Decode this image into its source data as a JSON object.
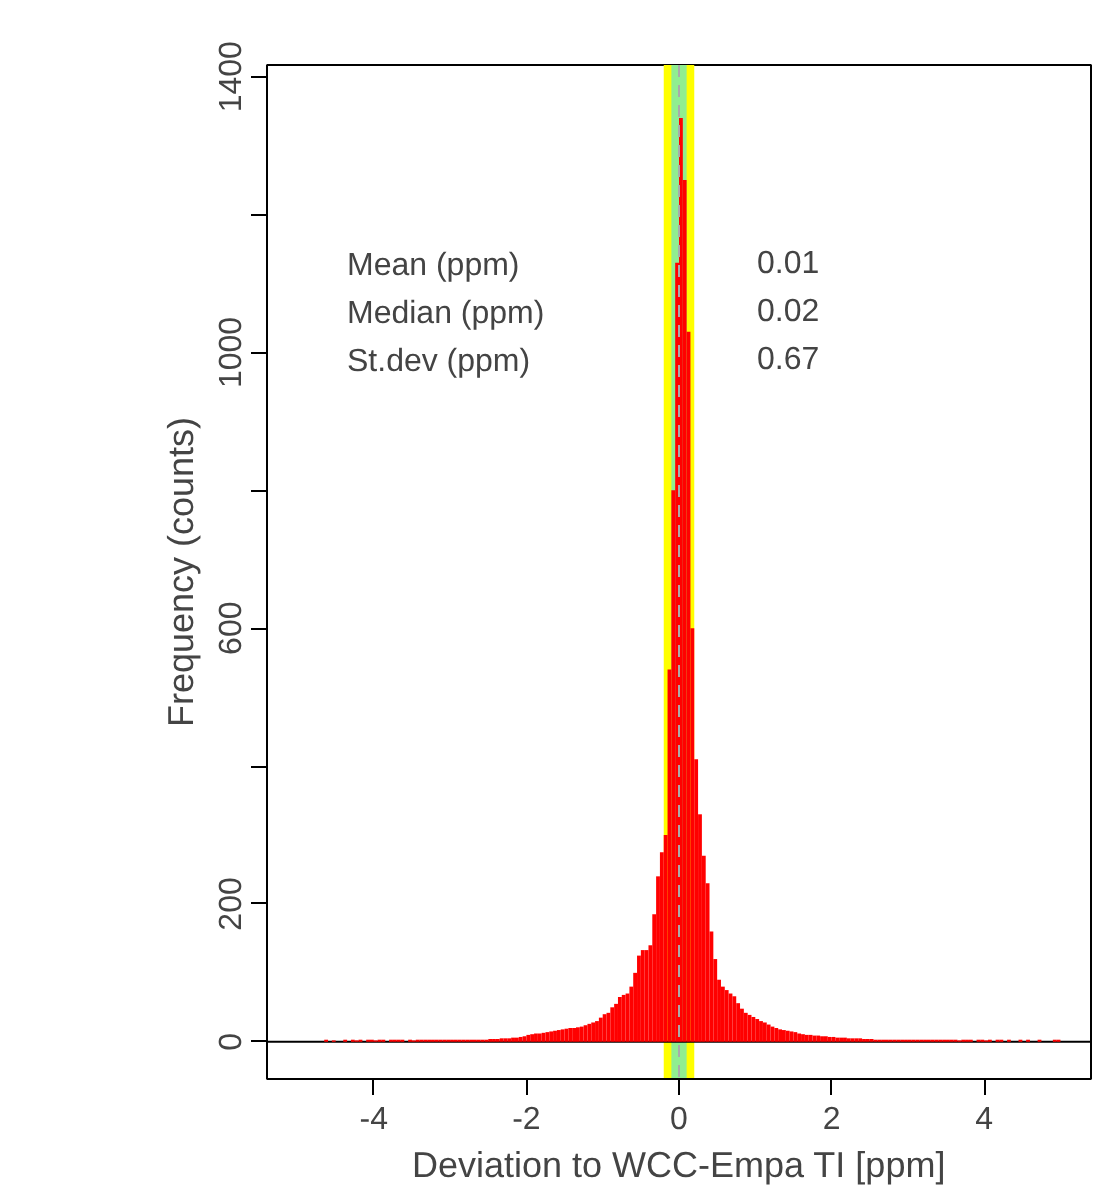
{
  "chart_data": {
    "type": "histogram",
    "xlabel": "Deviation to WCC-Empa TI [ppm]",
    "ylabel": "Frequency (counts)",
    "color": "#ff0000",
    "bins": [
      -4.65,
      -4.6,
      -4.55,
      -4.5,
      -4.45,
      -4.4,
      -4.35,
      -4.3,
      -4.25,
      -4.2,
      -4.15,
      -4.1,
      -4.05,
      -4,
      -3.95,
      -3.9,
      -3.85,
      -3.8,
      -3.75,
      -3.7,
      -3.65,
      -3.6,
      -3.55,
      -3.5,
      -3.45,
      -3.4,
      -3.35,
      -3.3,
      -3.25,
      -3.2,
      -3.15,
      -3.1,
      -3.05,
      -3,
      -2.95,
      -2.9,
      -2.85,
      -2.8,
      -2.75,
      -2.7,
      -2.65,
      -2.6,
      -2.55,
      -2.5,
      -2.45,
      -2.4,
      -2.35,
      -2.3,
      -2.25,
      -2.2,
      -2.15,
      -2.1,
      -2.05,
      -2,
      -1.95,
      -1.9,
      -1.85,
      -1.8,
      -1.75,
      -1.7,
      -1.65,
      -1.6,
      -1.55,
      -1.5,
      -1.45,
      -1.4,
      -1.35,
      -1.3,
      -1.25,
      -1.2,
      -1.15,
      -1.1,
      -1.05,
      -1,
      -0.95,
      -0.9,
      -0.85,
      -0.8,
      -0.75,
      -0.7,
      -0.65,
      -0.6,
      -0.55,
      -0.5,
      -0.45,
      -0.4,
      -0.35,
      -0.3,
      -0.25,
      -0.2,
      -0.15,
      -0.1,
      -0.05,
      0,
      0.05,
      0.1,
      0.15,
      0.2,
      0.25,
      0.3,
      0.35,
      0.4,
      0.45,
      0.5,
      0.55,
      0.6,
      0.65,
      0.7,
      0.75,
      0.8,
      0.85,
      0.9,
      0.95,
      1,
      1.05,
      1.1,
      1.15,
      1.2,
      1.25,
      1.3,
      1.35,
      1.4,
      1.45,
      1.5,
      1.55,
      1.6,
      1.65,
      1.7,
      1.75,
      1.8,
      1.85,
      1.9,
      1.95,
      2,
      2.05,
      2.1,
      2.15,
      2.2,
      2.25,
      2.3,
      2.35,
      2.4,
      2.45,
      2.5,
      2.55,
      2.6,
      2.65,
      2.7,
      2.75,
      2.8,
      2.85,
      2.9,
      2.95,
      3,
      3.05,
      3.1,
      3.15,
      3.2,
      3.25,
      3.3,
      3.35,
      3.4,
      3.45,
      3.5,
      3.55,
      3.6,
      3.65,
      3.7,
      3.75,
      3.8,
      3.85,
      3.9,
      3.95,
      4,
      4.05,
      4.1,
      4.15,
      4.2,
      4.25,
      4.3,
      4.35,
      4.4,
      4.45,
      4.5,
      4.55,
      4.6,
      4.65,
      4.7,
      4.75,
      4.8,
      4.85,
      4.9,
      4.95,
      5
    ],
    "values": [
      3,
      null,
      2,
      null,
      null,
      3,
      null,
      3,
      2,
      3,
      null,
      3,
      3,
      2,
      3,
      3,
      null,
      3,
      3,
      3,
      3,
      null,
      3,
      2,
      3,
      3,
      3,
      3,
      3,
      3,
      3,
      3,
      3,
      3,
      3,
      3,
      3,
      3,
      3,
      3,
      3,
      3,
      3,
      4,
      4,
      4,
      5,
      5,
      5,
      6,
      6,
      7,
      8,
      10,
      11,
      12,
      12,
      13,
      14,
      15,
      16,
      17,
      18,
      19,
      20,
      20,
      21,
      22,
      24,
      26,
      28,
      30,
      35,
      40,
      42,
      50,
      55,
      65,
      68,
      70,
      80,
      100,
      125,
      133,
      133,
      140,
      185,
      240,
      275,
      300,
      540,
      800,
      1130,
      1340,
      1250,
      1030,
      600,
      410,
      330,
      270,
      230,
      160,
      120,
      90,
      80,
      75,
      70,
      66,
      56,
      48,
      42,
      39,
      36,
      33,
      30,
      28,
      25,
      22,
      20,
      18,
      17,
      16,
      15,
      14,
      12,
      11,
      10,
      10,
      9,
      9,
      8,
      8,
      7,
      7,
      6,
      6,
      6,
      5,
      5,
      5,
      5,
      4,
      4,
      4,
      3,
      3,
      3,
      3,
      3,
      3,
      3,
      3,
      3,
      3,
      3,
      3,
      3,
      3,
      3,
      3,
      3,
      3,
      3,
      3,
      3,
      3,
      2,
      3,
      3,
      3,
      null,
      3,
      3,
      2,
      3,
      null,
      3,
      3,
      null,
      3,
      null,
      null,
      3,
      null,
      3,
      null,
      null,
      3,
      null,
      null,
      null,
      3,
      3
    ],
    "xlim": [
      -5.4,
      5.4
    ],
    "xticks": [
      -4,
      -2,
      0,
      2,
      4
    ],
    "ylim": [
      -54,
      1417
    ],
    "yticks": [
      0,
      200,
      {
        "value": 400,
        "label": null
      },
      600,
      {
        "value": 800,
        "label": null
      },
      1000,
      {
        "value": 1200,
        "label": null
      },
      1400
    ],
    "bands": [
      {
        "axis": "x",
        "from": -0.2,
        "to": 0.2,
        "color": "#ffff00"
      },
      {
        "axis": "x",
        "from": -0.1,
        "to": 0.1,
        "color": "#90ee90"
      }
    ],
    "ref_lines": [
      {
        "axis": "y",
        "value": 0,
        "color": "#000000",
        "line_style": "solid"
      },
      {
        "axis": "x",
        "value": 0,
        "color": "#aaaaaa",
        "line_style": "dashed"
      }
    ],
    "annotations": [
      "Mean (ppm)",
      "0.01",
      "Median (ppm)",
      "0.02",
      "St.dev (ppm)",
      "0.67"
    ],
    "grid": false
  }
}
